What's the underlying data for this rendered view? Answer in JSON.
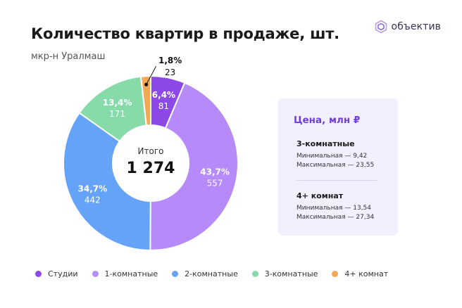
{
  "header": {
    "title": "Количество квартир в продаже, шт.",
    "subtitle": "мкр-н Уралмаш"
  },
  "logo": {
    "text": "объектив",
    "icon": "hexagon-logo-icon"
  },
  "chart_data": {
    "type": "pie",
    "variant": "donut",
    "center_label": "Итого",
    "center_value": "1 274",
    "start_angle_deg": 0,
    "direction": "clockwise",
    "slices": [
      {
        "name": "Студии",
        "value": 81,
        "percent_label": "6,4%",
        "value_label": "81",
        "color": "#8c49e6"
      },
      {
        "name": "1-комнатные",
        "value": 557,
        "percent_label": "43,7%",
        "value_label": "557",
        "color": "#b68af8"
      },
      {
        "name": "2-комнатные",
        "value": 442,
        "percent_label": "34,7%",
        "value_label": "442",
        "color": "#64a3f7"
      },
      {
        "name": "3-комнатные",
        "value": 171,
        "percent_label": "13,4%",
        "value_label": "171",
        "color": "#86dba9"
      },
      {
        "name": "4+ комнат",
        "value": 23,
        "percent_label": "1,8%",
        "value_label": "23",
        "color": "#f5a855"
      }
    ],
    "legend": [
      "Студии",
      "1-комнатные",
      "2-комнатные",
      "3-комнатные",
      "4+ комнат"
    ],
    "legend_placement": "bottom"
  },
  "price_card": {
    "title": "Цена, млн ₽",
    "groups": [
      {
        "title": "3-комнатные",
        "min": "Минимальная — 9,42",
        "max": "Максимальная — 23,55"
      },
      {
        "title": "4+ комнат",
        "min": "Минимальная — 13,54",
        "max": "Максимальная — 27,34"
      }
    ]
  }
}
